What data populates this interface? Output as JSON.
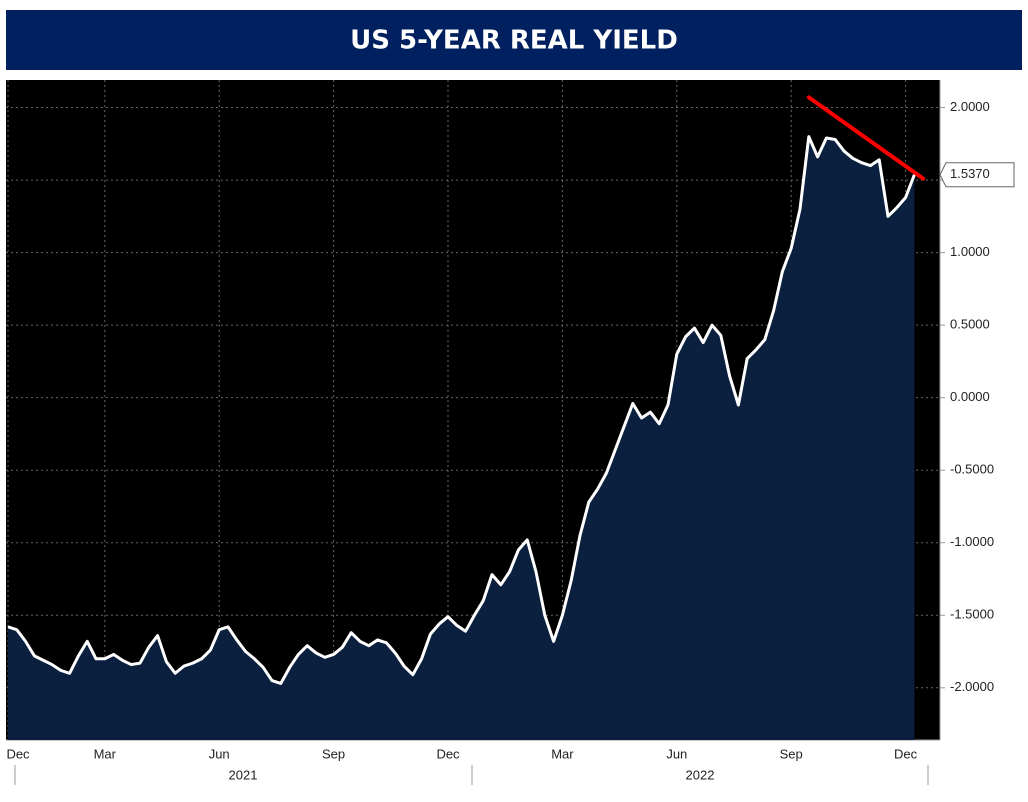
{
  "chart_data": {
    "type": "area",
    "title": "US 5-YEAR REAL YIELD",
    "categories": [
      "Dec",
      null,
      null,
      null,
      null,
      null,
      null,
      null,
      null,
      null,
      null,
      "Mar",
      null,
      null,
      null,
      null,
      null,
      null,
      null,
      null,
      null,
      null,
      null,
      null,
      "Jun",
      null,
      null,
      null,
      null,
      null,
      null,
      null,
      null,
      null,
      null,
      null,
      null,
      "Sep",
      null,
      null,
      null,
      null,
      null,
      null,
      null,
      null,
      null,
      null,
      null,
      null,
      "Dec",
      null,
      null,
      null,
      null,
      null,
      null,
      null,
      null,
      null,
      null,
      null,
      null,
      "Mar",
      null,
      null,
      null,
      null,
      null,
      null,
      null,
      null,
      null,
      null,
      null,
      null,
      "Jun",
      null,
      null,
      null,
      null,
      null,
      null,
      null,
      null,
      null,
      null,
      null,
      null,
      "Sep",
      null,
      null,
      null,
      null,
      null,
      null,
      null,
      null,
      null,
      null,
      null,
      null,
      "Dec",
      null
    ],
    "values": [
      -1.58,
      -1.6,
      -1.68,
      -1.78,
      -1.81,
      -1.84,
      -1.88,
      -1.9,
      -1.78,
      -1.68,
      -1.8,
      -1.8,
      -1.77,
      -1.81,
      -1.84,
      -1.83,
      -1.72,
      -1.64,
      -1.82,
      -1.9,
      -1.85,
      -1.83,
      -1.8,
      -1.74,
      -1.6,
      -1.58,
      -1.67,
      -1.75,
      -1.8,
      -1.86,
      -1.95,
      -1.97,
      -1.86,
      -1.77,
      -1.71,
      -1.76,
      -1.79,
      -1.77,
      -1.72,
      -1.62,
      -1.68,
      -1.71,
      -1.67,
      -1.69,
      -1.76,
      -1.85,
      -1.91,
      -1.8,
      -1.63,
      -1.56,
      -1.51,
      -1.57,
      -1.61,
      -1.5,
      -1.4,
      -1.22,
      -1.29,
      -1.2,
      -1.05,
      -0.98,
      -1.2,
      -1.5,
      -1.68,
      -1.5,
      -1.26,
      -0.95,
      -0.72,
      -0.63,
      -0.52,
      -0.36,
      -0.2,
      -0.04,
      -0.14,
      -0.1,
      -0.18,
      -0.05,
      0.3,
      0.42,
      0.48,
      0.38,
      0.5,
      0.43,
      0.15,
      -0.05,
      0.27,
      0.33,
      0.4,
      0.6,
      0.87,
      1.03,
      1.3,
      1.8,
      1.66,
      1.79,
      1.78,
      1.7,
      1.65,
      1.62,
      1.6,
      1.64,
      1.25,
      1.31,
      1.38,
      1.537
    ],
    "value_labels": [
      null,
      null,
      null,
      null,
      null,
      null,
      null,
      null,
      null,
      null,
      null,
      null,
      null,
      null,
      null,
      null,
      null,
      null,
      null,
      null,
      null,
      null,
      null,
      null,
      null,
      null,
      null,
      null,
      null,
      null,
      null,
      null,
      null,
      null,
      null,
      null,
      null,
      null,
      null,
      null,
      null,
      null,
      null,
      null,
      null,
      null,
      null,
      null,
      null,
      null,
      null,
      null,
      null,
      null,
      null,
      null,
      null,
      null,
      null,
      null,
      null,
      null,
      null,
      null,
      null,
      null,
      null,
      null,
      null,
      null,
      null,
      null,
      null,
      null,
      null,
      null,
      null,
      null,
      null,
      null,
      null,
      null,
      null,
      null,
      null,
      null,
      null,
      null,
      null,
      null,
      null,
      null,
      null,
      null,
      null,
      null,
      null,
      null,
      null,
      null,
      null,
      null,
      null,
      "1.5370"
    ],
    "line_color": "#ffffff",
    "fill_color": "#0b1f3e",
    "years": [
      "2021",
      "2022"
    ],
    "ylim": [
      -2.36,
      2.19
    ],
    "yticks": [
      {
        "value": -2,
        "label": "-2.0000"
      },
      {
        "value": -1.5,
        "label": "-1.5000"
      },
      {
        "value": -1,
        "label": "-1.0000"
      },
      {
        "value": -0.5,
        "label": "-0.5000"
      },
      {
        "value": 0,
        "label": "0.0000"
      },
      {
        "value": 0.5,
        "label": "0.5000"
      },
      {
        "value": 1,
        "label": "1.0000"
      },
      {
        "value": 1.5,
        "label": "1.5000"
      },
      {
        "value": 2,
        "label": "2.0000"
      }
    ],
    "grid": true,
    "trendline": {
      "x": [
        91,
        104
      ],
      "y": [
        2.07,
        1.51
      ],
      "color": "#ff0000"
    }
  }
}
